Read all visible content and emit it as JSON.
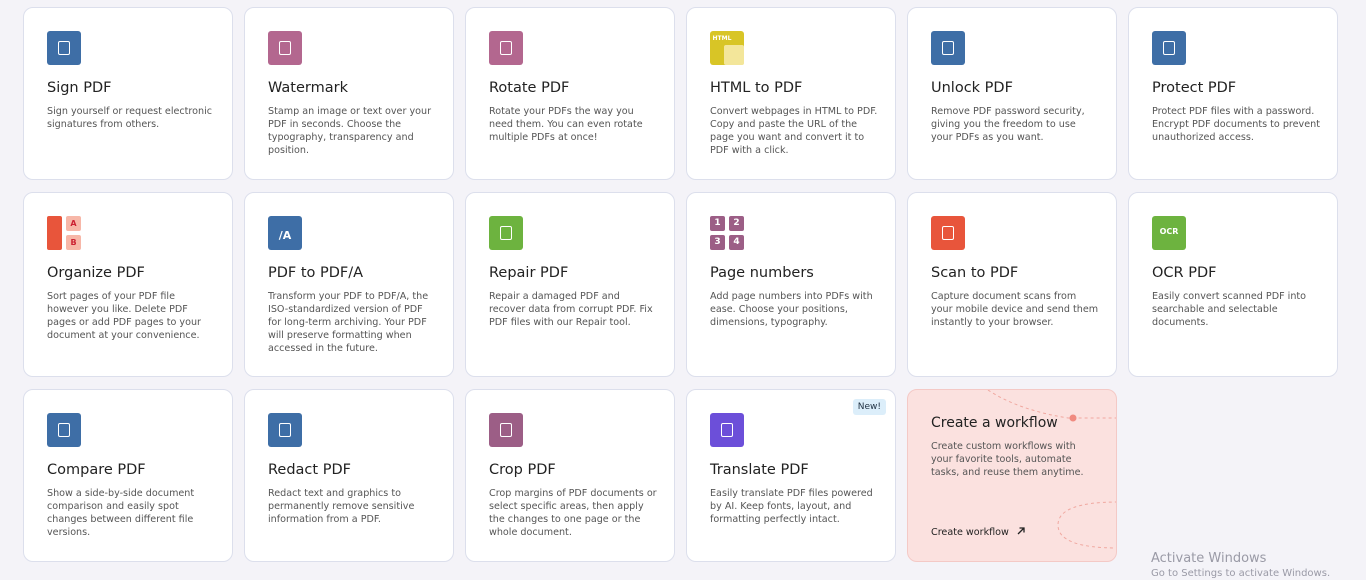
{
  "tools": [
    {
      "title": "Sign PDF",
      "description": "Sign yourself or request electronic signatures from others.",
      "color": "#3e6ea6"
    },
    {
      "title": "Watermark",
      "description": "Stamp an image or text over your PDF in seconds. Choose the typography, transparency and position.",
      "color": "#b3678f"
    },
    {
      "title": "Rotate PDF",
      "description": "Rotate your PDFs the way you need them. You can even rotate multiple PDFs at once!",
      "color": "#b3678f"
    },
    {
      "title": "HTML to PDF",
      "description": "Convert webpages in HTML to PDF. Copy and paste the URL of the page you want and convert it to PDF with a click.",
      "color": "#d8c526",
      "icon_text": [
        "HTML"
      ]
    },
    {
      "title": "Unlock PDF",
      "description": "Remove PDF password security, giving you the freedom to use your PDFs as you want.",
      "color": "#3e6ea6"
    },
    {
      "title": "Protect PDF",
      "description": "Protect PDF files with a password. Encrypt PDF documents to prevent unauthorized access.",
      "color": "#3e6ea6"
    },
    {
      "title": "Organize PDF",
      "description": "Sort pages of your PDF file however you like. Delete PDF pages or add PDF pages to your document at your convenience.",
      "color": "#e8553b",
      "icon_text": [
        "A",
        "B"
      ]
    },
    {
      "title": "PDF to PDF/A",
      "description": "Transform your PDF to PDF/A, the ISO-standardized version of PDF for long-term archiving. Your PDF will preserve formatting when accessed in the future.",
      "color": "#3e6ea6",
      "icon_text": [
        "/A"
      ]
    },
    {
      "title": "Repair PDF",
      "description": "Repair a damaged PDF and recover data from corrupt PDF. Fix PDF files with our Repair tool.",
      "color": "#6db33f"
    },
    {
      "title": "Page numbers",
      "description": "Add page numbers into PDFs with ease. Choose your positions, dimensions, typography.",
      "color": "#9c5e86",
      "icon_text": [
        "1",
        "2",
        "3",
        "4"
      ]
    },
    {
      "title": "Scan to PDF",
      "description": "Capture document scans from your mobile device and send them instantly to your browser.",
      "color": "#e8553b"
    },
    {
      "title": "OCR PDF",
      "description": "Easily convert scanned PDF into searchable and selectable documents.",
      "color": "#6db33f",
      "icon_text": [
        "OCR"
      ]
    },
    {
      "title": "Compare PDF",
      "description": "Show a side-by-side document comparison and easily spot changes between different file versions.",
      "color": "#3e6ea6"
    },
    {
      "title": "Redact PDF",
      "description": "Redact text and graphics to permanently remove sensitive information from a PDF.",
      "color": "#3e6ea6"
    },
    {
      "title": "Crop PDF",
      "description": "Crop margins of PDF documents or select specific areas, then apply the changes to one page or the whole document.",
      "color": "#9c5e86"
    },
    {
      "title": "Translate PDF",
      "description": "Easily translate PDF files powered by AI. Keep fonts, layout, and formatting perfectly intact.",
      "color": "#6c4fd9",
      "badge": "New!"
    }
  ],
  "workflow": {
    "title": "Create a workflow",
    "description": "Create custom workflows with your favorite tools, automate tasks, and reuse them anytime.",
    "link": "Create workflow"
  },
  "watermark": {
    "title": "Activate Windows",
    "subtitle": "Go to Settings to activate Windows."
  }
}
